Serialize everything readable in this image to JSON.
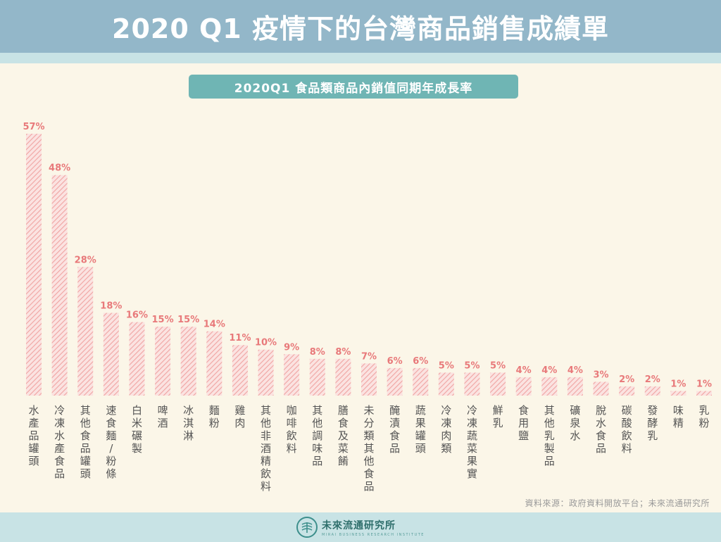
{
  "header": {
    "title": "2020 Q1 疫情下的台灣商品銷售成績單"
  },
  "chart_data": {
    "type": "bar",
    "title": "2020Q1  食品類商品內銷值同期年成長率",
    "categories": [
      "水產品罐頭",
      "冷凍水產食品",
      "其他食品罐頭",
      "速食麵/粉條",
      "白米碾製",
      "啤酒",
      "冰淇淋",
      "麵粉",
      "雞肉",
      "其他非酒精飲料",
      "咖啡飲料",
      "其他調味品",
      "膳食及菜餚",
      "未分類其他食品",
      "醃漬食品",
      "蔬果罐頭",
      "冷凍肉類",
      "冷凍蔬菜果實",
      "鮮乳",
      "食用鹽",
      "其他乳製品",
      "礦泉水",
      "脫水食品",
      "碳酸飲料",
      "發酵乳",
      "味精",
      "乳粉"
    ],
    "values": [
      57,
      48,
      28,
      18,
      16,
      15,
      15,
      14,
      11,
      10,
      9,
      8,
      8,
      7,
      6,
      6,
      5,
      5,
      5,
      4,
      4,
      4,
      3,
      2,
      2,
      1,
      1
    ],
    "value_labels": [
      "57%",
      "48%",
      "28%",
      "18%",
      "16%",
      "15%",
      "15%",
      "14%",
      "11%",
      "10%",
      "9%",
      "8%",
      "8%",
      "7%",
      "6%",
      "6%",
      "5%",
      "5%",
      "5%",
      "4%",
      "4%",
      "4%",
      "3%",
      "2%",
      "2%",
      "1%",
      "1%"
    ],
    "ylim": [
      0,
      57
    ],
    "grid": false,
    "bar_color": "#e8797a",
    "bar_fill": "hatched"
  },
  "source": "資料來源：政府資料開放平台；未來流通研究所",
  "footer": {
    "logo_icon": "mic-logo-icon",
    "logo_name": "未來流通研究所",
    "logo_sub": "MIRAI BUSINESS RESEARCH INSTITUTE"
  },
  "colors": {
    "header_bg": "#93b7c9",
    "band": "#c8e3e5",
    "pill": "#6fb5b4",
    "bar": "#e8797a",
    "background": "#fbf6e8"
  }
}
